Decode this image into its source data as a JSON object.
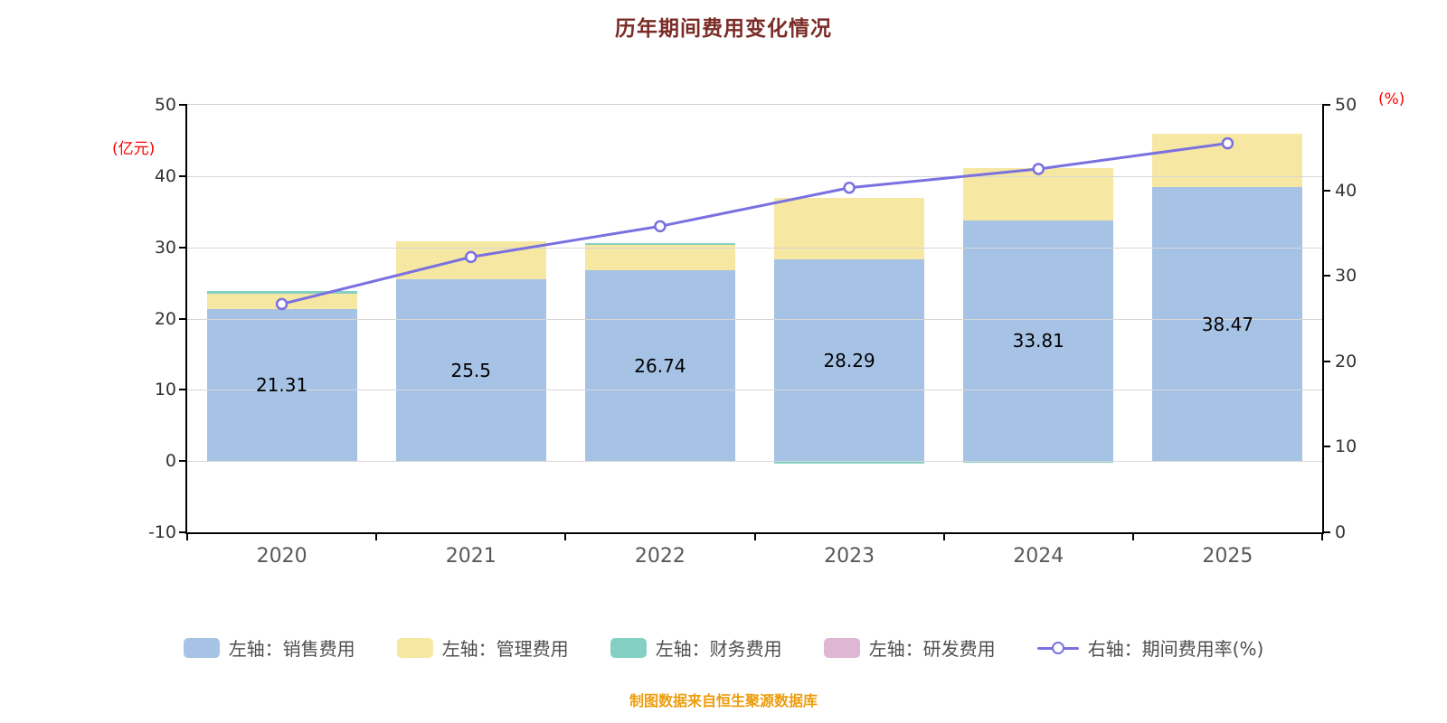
{
  "title": "历年期间费用变化情况",
  "source_note": "制图数据来自恒生聚源数据库",
  "axes": {
    "left_unit": "(亿元)",
    "right_unit": "(%)",
    "left_ticks": [
      50,
      40,
      30,
      20,
      10,
      0,
      -10
    ],
    "right_ticks": [
      50,
      40,
      30,
      20,
      10,
      0
    ],
    "left_min": -10,
    "left_max": 50,
    "right_min": 0,
    "right_max": 50
  },
  "colors": {
    "sales": "#a6c3e6",
    "admin": "#f6e7a2",
    "finance": "#85d0c4",
    "rd": "#e0b6d5",
    "rate_line": "#7a70e0",
    "title": "#7b2c27",
    "axis_unit": "#ff0000",
    "footer": "#ed9d0d"
  },
  "legend": [
    {
      "label": "左轴：销售费用",
      "symbol": "swatch",
      "color": "#a6c3e6"
    },
    {
      "label": "左轴：管理费用",
      "symbol": "swatch",
      "color": "#f6e7a2"
    },
    {
      "label": "左轴：财务费用",
      "symbol": "swatch",
      "color": "#85d0c4"
    },
    {
      "label": "左轴：研发费用",
      "symbol": "swatch",
      "color": "#e0b6d5"
    },
    {
      "label": "右轴：期间费用率(%)",
      "symbol": "line",
      "color": "#7a70e0"
    }
  ],
  "chart_data": {
    "type": "bar+line",
    "categories": [
      "2020",
      "2021",
      "2022",
      "2023",
      "2024",
      "2025"
    ],
    "left_axis": {
      "min": -10,
      "max": 50,
      "ticks": [
        50,
        40,
        30,
        20,
        10,
        0,
        -10
      ],
      "label": "(亿元)"
    },
    "right_axis": {
      "min": 0,
      "max": 50,
      "ticks": [
        50,
        40,
        30,
        20,
        10,
        0
      ],
      "label": "(%)"
    },
    "series": [
      {
        "key": "sales",
        "name": "销售费用",
        "axis": "left",
        "type": "bar",
        "values": [
          21.31,
          25.5,
          26.74,
          28.29,
          33.81,
          38.47
        ],
        "labels": [
          "21.31",
          "25.5",
          "26.74",
          "28.29",
          "33.81",
          "38.47"
        ],
        "color": "#a6c3e6"
      },
      {
        "key": "admin",
        "name": "管理费用",
        "axis": "left",
        "type": "bar",
        "values": [
          2.2,
          5.3,
          3.6,
          8.6,
          7.3,
          7.5
        ],
        "color": "#f6e7a2"
      },
      {
        "key": "finance",
        "name": "财务费用",
        "axis": "left",
        "type": "bar",
        "values": [
          0.3,
          0,
          0.3,
          -0.35,
          -0.25,
          0
        ],
        "color": "#85d0c4"
      },
      {
        "key": "rd",
        "name": "研发费用",
        "axis": "left",
        "type": "bar",
        "values": [
          0,
          0,
          0,
          0,
          0,
          0
        ],
        "color": "#e0b6d5"
      },
      {
        "key": "rate",
        "name": "期间费用率(%)",
        "axis": "right",
        "type": "line",
        "values": [
          26.7,
          32.2,
          35.8,
          40.3,
          42.5,
          45.5
        ],
        "color": "#7a70e0"
      }
    ]
  }
}
